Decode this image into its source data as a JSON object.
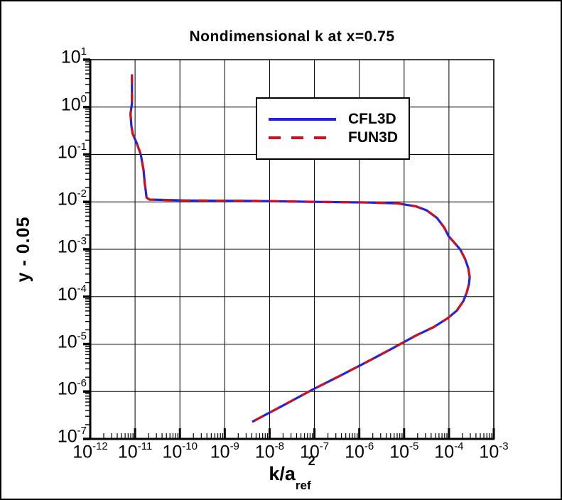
{
  "figure": {
    "title": "Nondimensional k at x=0.75",
    "ylabel": "y - 0.05",
    "xlabel": {
      "main": "k/a",
      "sub": "ref",
      "sup": "2"
    }
  },
  "legend": {
    "items": [
      {
        "label": "CFL3D",
        "color": "#2222dd",
        "style": "solid"
      },
      {
        "label": "FUN3D",
        "color": "#cc1122",
        "style": "dashed"
      }
    ]
  },
  "chart_data": {
    "type": "line",
    "title": "Nondimensional k at x=0.75",
    "xlabel": "k/a_ref^2",
    "ylabel": "y - 0.05",
    "xscale": "log",
    "yscale": "log",
    "xlim": [
      1e-12,
      0.001
    ],
    "ylim": [
      1e-07,
      10
    ],
    "grid": true,
    "legend_position": "upper-center",
    "tick_base": "10",
    "x_tick_exponents": [
      -12,
      -11,
      -10,
      -9,
      -8,
      -7,
      -6,
      -5,
      -4,
      -3
    ],
    "y_tick_exponents": [
      1,
      0,
      -1,
      -2,
      -3,
      -4,
      -5,
      -6,
      -7
    ],
    "series": [
      {
        "name": "CFL3D",
        "color": "#2222dd",
        "line_style": "solid",
        "points": [
          [
            8.5e-12,
            4.9
          ],
          [
            8.5e-12,
            1.2
          ],
          [
            7.9e-12,
            0.72
          ],
          [
            8.3e-12,
            0.39
          ],
          [
            8.9e-12,
            0.27
          ],
          [
            1.1e-11,
            0.17
          ],
          [
            1.35e-11,
            0.098
          ],
          [
            1.55e-11,
            0.046
          ],
          [
            1.65e-11,
            0.024
          ],
          [
            1.75e-11,
            0.016
          ],
          [
            1.8e-11,
            0.0123
          ],
          [
            2.1e-11,
            0.0112
          ],
          [
            1.3e-10,
            0.0107
          ],
          [
            3.4e-09,
            0.0105
          ],
          [
            1.3e-07,
            0.01
          ],
          [
            1.7e-06,
            0.0097
          ],
          [
            7.2e-06,
            0.0093
          ],
          [
            1.8e-05,
            0.0081
          ],
          [
            3.2e-05,
            0.0066
          ],
          [
            5.4e-05,
            0.0046
          ],
          [
            7.8e-05,
            0.0029
          ],
          [
            9.8e-05,
            0.0019
          ],
          [
            0.000126,
            0.00145
          ],
          [
            0.00018,
            0.00098
          ],
          [
            0.00023,
            0.00062
          ],
          [
            0.00027,
            0.0004
          ],
          [
            0.00029,
            0.00026
          ],
          [
            0.00028,
            0.000186
          ],
          [
            0.00025,
            0.000123
          ],
          [
            0.00021,
            8.1e-05
          ],
          [
            0.00015,
            5.1e-05
          ],
          [
            9.3e-05,
            3.5e-05
          ],
          [
            4.6e-05,
            2.3e-05
          ],
          [
            1.8e-05,
            1.5e-05
          ],
          [
            6e-06,
            8.5e-06
          ],
          [
            1.7e-06,
            4.5e-06
          ],
          [
            3.9e-07,
            2.2e-06
          ],
          [
            9.1e-08,
            1.1e-06
          ],
          [
            2.1e-08,
            5.2e-07
          ],
          [
            4.1e-09,
            2.3e-07
          ]
        ]
      },
      {
        "name": "FUN3D",
        "color": "#cc1122",
        "line_style": "dashed",
        "points": [
          [
            8.5e-12,
            4.9
          ],
          [
            8.5e-12,
            1.2
          ],
          [
            7.9e-12,
            0.72
          ],
          [
            8.3e-12,
            0.39
          ],
          [
            8.9e-12,
            0.27
          ],
          [
            1.1e-11,
            0.17
          ],
          [
            1.35e-11,
            0.098
          ],
          [
            1.55e-11,
            0.046
          ],
          [
            1.65e-11,
            0.024
          ],
          [
            1.75e-11,
            0.016
          ],
          [
            1.8e-11,
            0.0123
          ],
          [
            2.1e-11,
            0.0112
          ],
          [
            1.3e-10,
            0.0107
          ],
          [
            3.4e-09,
            0.0105
          ],
          [
            1.3e-07,
            0.01
          ],
          [
            1.7e-06,
            0.0097
          ],
          [
            7.2e-06,
            0.0093
          ],
          [
            1.8e-05,
            0.0081
          ],
          [
            3.2e-05,
            0.0066
          ],
          [
            5.4e-05,
            0.0046
          ],
          [
            7.8e-05,
            0.0029
          ],
          [
            9.8e-05,
            0.0019
          ],
          [
            0.000126,
            0.00145
          ],
          [
            0.00018,
            0.00098
          ],
          [
            0.00023,
            0.00062
          ],
          [
            0.00027,
            0.0004
          ],
          [
            0.00029,
            0.00026
          ],
          [
            0.00028,
            0.000186
          ],
          [
            0.00025,
            0.000123
          ],
          [
            0.00021,
            8.1e-05
          ],
          [
            0.00015,
            5.1e-05
          ],
          [
            9.3e-05,
            3.5e-05
          ],
          [
            4.6e-05,
            2.3e-05
          ],
          [
            1.8e-05,
            1.5e-05
          ],
          [
            6e-06,
            8.5e-06
          ],
          [
            1.7e-06,
            4.5e-06
          ],
          [
            3.9e-07,
            2.2e-06
          ],
          [
            9.1e-08,
            1.1e-06
          ],
          [
            2.1e-08,
            5.2e-07
          ],
          [
            4.1e-09,
            2.3e-07
          ]
        ]
      }
    ]
  }
}
